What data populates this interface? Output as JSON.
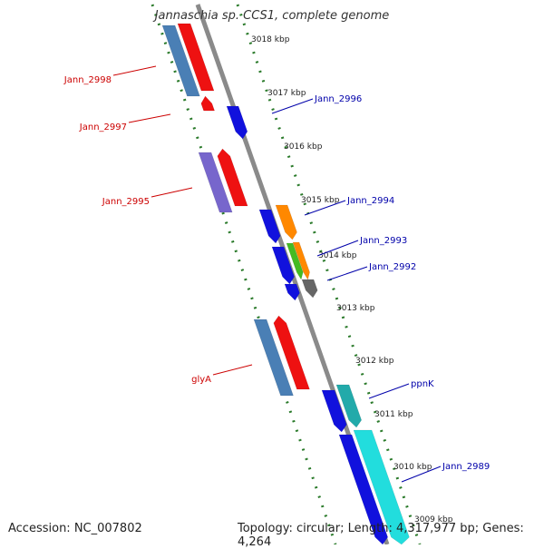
{
  "title": "Jannaschia sp. CCS1, complete genome",
  "footer": {
    "accession": "Accession: NC_007802",
    "summary": "Topology: circular; Length: 4,317,977 bp; Genes: 4,264"
  },
  "colors": {
    "reverse_label": "#cc0000",
    "forward_label": "#0000aa",
    "backbone": "#8a8a8a",
    "ruler_dots": "#2a7a2a"
  },
  "ticks": [
    "3018 kbp",
    "3017 kbp",
    "3016 kbp",
    "3015 kbp",
    "3014 kbp",
    "3013 kbp",
    "3012 kbp",
    "3011 kbp",
    "3010 kbp",
    "3009 kbp"
  ],
  "left_labels": [
    "Jann_2998",
    "Jann_2997",
    "Jann_2995",
    "glyA"
  ],
  "right_labels": [
    "Jann_2996",
    "Jann_2994",
    "Jann_2993",
    "Jann_2992",
    "ppnK",
    "Jann_2989"
  ],
  "features": [
    {
      "name": "Jann_2998",
      "strand": "reverse",
      "color": "#4a7fb5"
    },
    {
      "name": "Jann_2998",
      "strand": "reverse",
      "color": "#ee1111"
    },
    {
      "name": "Jann_2997",
      "strand": "reverse",
      "color": "#ee1111"
    },
    {
      "name": "Jann_2996",
      "strand": "forward",
      "color": "#1111dd"
    },
    {
      "name": "Jann_2995",
      "strand": "reverse",
      "color": "#7766cc"
    },
    {
      "name": "Jann_2995",
      "strand": "reverse",
      "color": "#ee1111"
    },
    {
      "name": "Jann_2994",
      "strand": "forward",
      "color": "#1111dd"
    },
    {
      "name": "Jann_2994",
      "strand": "forward",
      "color": "#ff8800"
    },
    {
      "name": "Jann_2993",
      "strand": "forward",
      "color": "#1111dd"
    },
    {
      "name": "Jann_2993",
      "strand": "forward",
      "color": "#44bb22"
    },
    {
      "name": "Jann_2993",
      "strand": "forward",
      "color": "#ff8800"
    },
    {
      "name": "Jann_2992",
      "strand": "forward",
      "color": "#1111dd"
    },
    {
      "name": "Jann_2992",
      "strand": "forward",
      "color": "#666666"
    },
    {
      "name": "glyA",
      "strand": "reverse",
      "color": "#4a7fb5"
    },
    {
      "name": "glyA",
      "strand": "reverse",
      "color": "#ee1111"
    },
    {
      "name": "ppnK",
      "strand": "forward",
      "color": "#1111dd"
    },
    {
      "name": "ppnK",
      "strand": "forward",
      "color": "#22aaaa"
    },
    {
      "name": "Jann_2989",
      "strand": "forward",
      "color": "#1111dd"
    },
    {
      "name": "Jann_2989",
      "strand": "forward",
      "color": "#22dddd"
    }
  ]
}
